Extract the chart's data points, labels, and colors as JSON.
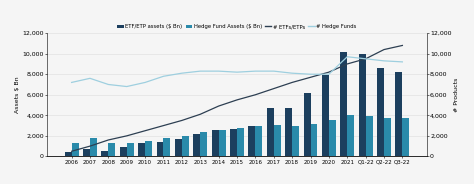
{
  "categories": [
    "2006",
    "2007",
    "2008",
    "2009",
    "2010",
    "2011",
    "2012",
    "2013",
    "2014",
    "2015",
    "2016",
    "2017",
    "2018",
    "2019",
    "2020",
    "2021",
    "Q1-22",
    "Q2-22",
    "Q3-22"
  ],
  "etf_assets": [
    400,
    700,
    500,
    900,
    1300,
    1400,
    1700,
    2200,
    2600,
    2700,
    3000,
    4700,
    4700,
    6200,
    7900,
    10200,
    10000,
    8600,
    8200
  ],
  "hf_assets": [
    1300,
    1800,
    1300,
    1300,
    1500,
    1800,
    2000,
    2400,
    2600,
    2800,
    3000,
    3100,
    3000,
    3200,
    3500,
    4000,
    3900,
    3700,
    3700
  ],
  "etf_count": [
    500,
    1000,
    1600,
    2000,
    2500,
    3000,
    3500,
    4100,
    4900,
    5500,
    6000,
    6600,
    7200,
    7700,
    8200,
    9000,
    9500,
    10400,
    10800
  ],
  "hf_count": [
    7200,
    7600,
    7000,
    6800,
    7200,
    7800,
    8100,
    8300,
    8300,
    8200,
    8300,
    8300,
    8100,
    8000,
    8000,
    9700,
    9500,
    9300,
    9200
  ],
  "etf_bar_color": "#1c3f5e",
  "hf_bar_color": "#2a8aaa",
  "etf_line_color": "#2d3f52",
  "hf_line_color": "#9ecfdf",
  "ylabel_left": "Assets $ Bn",
  "ylabel_right": "# Products",
  "ylim": [
    0,
    12000
  ],
  "yticks": [
    0,
    2000,
    4000,
    6000,
    8000,
    10000,
    12000
  ],
  "legend_labels": [
    "ETF/ETP assets ($ Bn)",
    "Hedge Fund Assets ($ Bn)",
    "# ETFs/ETPs",
    "# Hedge Funds"
  ],
  "bg_color": "#f5f5f5",
  "grid_color": "#dddddd"
}
